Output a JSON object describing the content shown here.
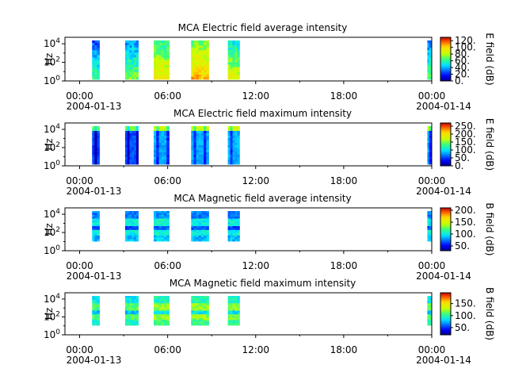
{
  "chart_data": [
    {
      "type": "heatmap",
      "title": "MCA  Electric field average intensity",
      "ylabel": "Hz",
      "ylim": [
        1,
        50000
      ],
      "yscale": "log",
      "yticks": [
        "10^0",
        "10^2",
        "10^4"
      ],
      "xticks": [
        "00:00",
        "06:00",
        "12:00",
        "18:00",
        "00:00"
      ],
      "xdates": [
        "2004-01-13",
        "2004-01-14"
      ],
      "colorbar": {
        "label": "E field (dB)",
        "ticks": [
          "0.",
          "20.",
          "40.",
          "60.",
          "80.",
          "100.",
          "120."
        ],
        "range": [
          0,
          130
        ]
      },
      "segments": [
        {
          "start_h": 0.85,
          "end_h": 1.35,
          "level": 45
        },
        {
          "start_h": 3.1,
          "end_h": 4.0,
          "level": 55
        },
        {
          "start_h": 5.05,
          "end_h": 6.1,
          "level": 78
        },
        {
          "start_h": 7.6,
          "end_h": 8.8,
          "level": 88
        },
        {
          "start_h": 10.1,
          "end_h": 10.9,
          "level": 70
        },
        {
          "start_h": 23.7,
          "end_h": 23.95,
          "level": 50
        }
      ]
    },
    {
      "type": "heatmap",
      "title": "MCA  Electric field maximum intensity",
      "ylabel": "Hz",
      "ylim": [
        1,
        50000
      ],
      "yscale": "log",
      "yticks": [
        "10^0",
        "10^2",
        "10^4"
      ],
      "xticks": [
        "00:00",
        "06:00",
        "12:00",
        "18:00",
        "00:00"
      ],
      "xdates": [
        "2004-01-13",
        "2004-01-14"
      ],
      "colorbar": {
        "label": "E field (dB)",
        "ticks": [
          "0.",
          "50.",
          "100.",
          "150.",
          "200.",
          "250."
        ],
        "range": [
          0,
          270
        ]
      },
      "segments": [
        {
          "start_h": 0.85,
          "end_h": 1.35,
          "level": 50
        },
        {
          "start_h": 3.1,
          "end_h": 4.0,
          "level": 55
        },
        {
          "start_h": 5.05,
          "end_h": 6.1,
          "level": 80
        },
        {
          "start_h": 7.6,
          "end_h": 8.8,
          "level": 82
        },
        {
          "start_h": 10.1,
          "end_h": 10.9,
          "level": 84
        },
        {
          "start_h": 23.7,
          "end_h": 23.95,
          "level": 80
        }
      ]
    },
    {
      "type": "heatmap",
      "title": "MCA  Magnetic field average intensity",
      "ylabel": "Hz",
      "ylim": [
        1,
        50000
      ],
      "yscale": "log",
      "yticks": [
        "10^0",
        "10^2",
        "10^4"
      ],
      "xticks": [
        "00:00",
        "06:00",
        "12:00",
        "18:00",
        "00:00"
      ],
      "xdates": [
        "2004-01-13",
        "2004-01-14"
      ],
      "colorbar": {
        "label": "B field (dB)",
        "ticks": [
          "50.",
          "100.",
          "150.",
          "200."
        ],
        "range": [
          30,
          210
        ]
      },
      "segments": [
        {
          "start_h": 0.85,
          "end_h": 1.35,
          "level": 100
        },
        {
          "start_h": 3.1,
          "end_h": 4.0,
          "level": 100
        },
        {
          "start_h": 5.05,
          "end_h": 6.1,
          "level": 105
        },
        {
          "start_h": 7.6,
          "end_h": 8.8,
          "level": 100
        },
        {
          "start_h": 10.1,
          "end_h": 10.9,
          "level": 100
        },
        {
          "start_h": 23.7,
          "end_h": 23.95,
          "level": 100
        }
      ]
    },
    {
      "type": "heatmap",
      "title": "MCA  Magnetic field maximum intensity",
      "ylabel": "Hz",
      "ylim": [
        1,
        50000
      ],
      "yscale": "log",
      "yticks": [
        "10^0",
        "10^2",
        "10^4"
      ],
      "xticks": [
        "00:00",
        "06:00",
        "12:00",
        "18:00",
        "00:00"
      ],
      "xdates": [
        "2004-01-13",
        "2004-01-14"
      ],
      "colorbar": {
        "label": "B field (dB)",
        "ticks": [
          "50.",
          "100.",
          "150."
        ],
        "range": [
          20,
          195
        ]
      },
      "segments": [
        {
          "start_h": 0.85,
          "end_h": 1.35,
          "level": 110
        },
        {
          "start_h": 3.1,
          "end_h": 4.0,
          "level": 110
        },
        {
          "start_h": 5.05,
          "end_h": 6.1,
          "level": 120
        },
        {
          "start_h": 7.6,
          "end_h": 8.8,
          "level": 120
        },
        {
          "start_h": 10.1,
          "end_h": 10.9,
          "level": 118
        },
        {
          "start_h": 23.7,
          "end_h": 23.95,
          "level": 110
        }
      ]
    }
  ]
}
